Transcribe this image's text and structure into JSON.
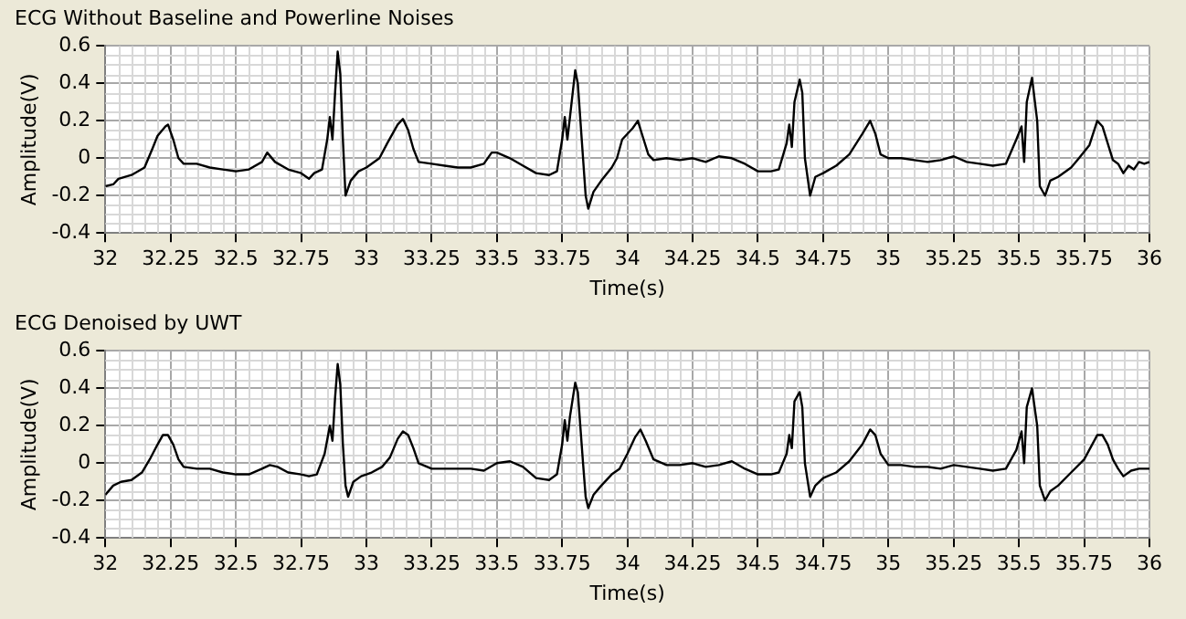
{
  "chart_data": [
    {
      "type": "line",
      "title": "ECG Without Baseline and Powerline Noises",
      "xlabel": "Time(s)",
      "ylabel": "Amplitude(V)",
      "xlim": [
        32,
        36
      ],
      "xticks": [
        32,
        32.25,
        32.5,
        32.75,
        33,
        33.25,
        33.5,
        33.75,
        34,
        34.25,
        34.5,
        34.75,
        35,
        35.25,
        35.5,
        35.75,
        36
      ],
      "ylim": [
        -0.4,
        0.6
      ],
      "yticks": [
        -0.4,
        -0.2,
        0,
        0.2,
        0.4,
        0.6
      ],
      "grid": true,
      "legend": false,
      "marker": "none",
      "line_style": "solid",
      "series": [
        {
          "color": "#000000",
          "x": [
            32,
            32.03,
            32.05,
            32.1,
            32.15,
            32.18,
            32.2,
            32.23,
            32.24,
            32.26,
            32.28,
            32.3,
            32.35,
            32.4,
            32.45,
            32.5,
            32.55,
            32.6,
            32.62,
            32.65,
            32.7,
            32.75,
            32.78,
            32.8,
            32.83,
            32.85,
            32.86,
            32.87,
            32.88,
            32.89,
            32.9,
            32.91,
            32.92,
            32.94,
            32.97,
            33,
            33.05,
            33.08,
            33.12,
            33.14,
            33.16,
            33.18,
            33.2,
            33.25,
            33.3,
            33.35,
            33.4,
            33.45,
            33.48,
            33.5,
            33.55,
            33.6,
            33.65,
            33.7,
            33.73,
            33.75,
            33.76,
            33.77,
            33.78,
            33.8,
            33.81,
            33.83,
            33.84,
            33.85,
            33.87,
            33.9,
            33.94,
            33.96,
            33.98,
            34.02,
            34.04,
            34.06,
            34.08,
            34.1,
            34.15,
            34.2,
            34.25,
            34.3,
            34.35,
            34.4,
            34.45,
            34.5,
            34.55,
            34.58,
            34.61,
            34.62,
            34.63,
            34.64,
            34.66,
            34.67,
            34.68,
            34.7,
            34.72,
            34.75,
            34.8,
            34.85,
            34.9,
            34.93,
            34.95,
            34.97,
            35,
            35.05,
            35.1,
            35.15,
            35.2,
            35.25,
            35.3,
            35.35,
            35.4,
            35.45,
            35.49,
            35.51,
            35.52,
            35.53,
            35.55,
            35.57,
            35.58,
            35.6,
            35.62,
            35.65,
            35.7,
            35.73,
            35.77,
            35.8,
            35.82,
            35.84,
            35.86,
            35.88,
            35.9,
            35.92,
            35.94,
            35.96,
            35.98,
            36
          ],
          "values": [
            -0.15,
            -0.14,
            -0.11,
            -0.09,
            -0.05,
            0.05,
            0.12,
            0.17,
            0.18,
            0.1,
            0,
            -0.03,
            -0.03,
            -0.05,
            -0.06,
            -0.07,
            -0.06,
            -0.02,
            0.03,
            -0.02,
            -0.06,
            -0.08,
            -0.11,
            -0.08,
            -0.06,
            0.1,
            0.22,
            0.1,
            0.35,
            0.57,
            0.45,
            0.1,
            -0.2,
            -0.12,
            -0.07,
            -0.05,
            0,
            0.08,
            0.18,
            0.21,
            0.15,
            0.05,
            -0.02,
            -0.03,
            -0.04,
            -0.05,
            -0.05,
            -0.03,
            0.03,
            0.03,
            0,
            -0.04,
            -0.08,
            -0.09,
            -0.07,
            0.1,
            0.22,
            0.1,
            0.22,
            0.47,
            0.4,
            0,
            -0.2,
            -0.27,
            -0.18,
            -0.12,
            -0.05,
            0,
            0.1,
            0.16,
            0.2,
            0.11,
            0.02,
            -0.01,
            0,
            -0.01,
            0,
            -0.02,
            0.01,
            0,
            -0.03,
            -0.07,
            -0.07,
            -0.06,
            0.08,
            0.18,
            0.06,
            0.3,
            0.42,
            0.35,
            0,
            -0.2,
            -0.1,
            -0.08,
            -0.04,
            0.02,
            0.13,
            0.2,
            0.13,
            0.02,
            0,
            0,
            -0.01,
            -0.02,
            -0.01,
            0.01,
            -0.02,
            -0.03,
            -0.04,
            -0.03,
            0.1,
            0.17,
            -0.02,
            0.3,
            0.43,
            0.2,
            -0.15,
            -0.2,
            -0.12,
            -0.1,
            -0.05,
            0,
            0.07,
            0.2,
            0.17,
            0.08,
            -0.01,
            -0.03,
            -0.08,
            -0.04,
            -0.06,
            -0.02,
            -0.03,
            -0.02
          ]
        }
      ]
    },
    {
      "type": "line",
      "title": "ECG Denoised by UWT",
      "xlabel": "Time(s)",
      "ylabel": "Amplitude(V)",
      "xlim": [
        32,
        36
      ],
      "xticks": [
        32,
        32.25,
        32.5,
        32.75,
        33,
        33.25,
        33.5,
        33.75,
        34,
        34.25,
        34.5,
        34.75,
        35,
        35.25,
        35.5,
        35.75,
        36
      ],
      "ylim": [
        -0.4,
        0.6
      ],
      "yticks": [
        -0.4,
        -0.2,
        0,
        0.2,
        0.4,
        0.6
      ],
      "grid": true,
      "legend": false,
      "marker": "none",
      "line_style": "solid",
      "series": [
        {
          "color": "#000000",
          "x": [
            32,
            32.03,
            32.06,
            32.1,
            32.14,
            32.17,
            32.2,
            32.22,
            32.24,
            32.26,
            32.28,
            32.3,
            32.35,
            32.4,
            32.45,
            32.5,
            32.55,
            32.6,
            32.63,
            32.66,
            32.7,
            32.75,
            32.78,
            32.81,
            32.84,
            32.86,
            32.87,
            32.88,
            32.89,
            32.9,
            32.91,
            32.92,
            32.93,
            32.95,
            32.98,
            33.02,
            33.06,
            33.09,
            33.12,
            33.14,
            33.16,
            33.18,
            33.2,
            33.25,
            33.3,
            33.35,
            33.4,
            33.45,
            33.5,
            33.55,
            33.6,
            33.65,
            33.7,
            33.73,
            33.75,
            33.76,
            33.77,
            33.78,
            33.8,
            33.81,
            33.83,
            33.84,
            33.85,
            33.87,
            33.9,
            33.94,
            33.97,
            34,
            34.03,
            34.05,
            34.07,
            34.1,
            34.15,
            34.2,
            34.25,
            34.3,
            34.35,
            34.4,
            34.45,
            34.5,
            34.55,
            34.58,
            34.61,
            34.62,
            34.63,
            34.64,
            34.66,
            34.67,
            34.68,
            34.7,
            34.72,
            34.75,
            34.8,
            34.85,
            34.9,
            34.93,
            34.95,
            34.97,
            35,
            35.05,
            35.1,
            35.15,
            35.2,
            35.25,
            35.3,
            35.35,
            35.4,
            35.45,
            35.49,
            35.51,
            35.52,
            35.53,
            35.55,
            35.57,
            35.58,
            35.6,
            35.62,
            35.65,
            35.7,
            35.75,
            35.8,
            35.82,
            35.84,
            35.86,
            35.88,
            35.9,
            35.93,
            35.96,
            36
          ],
          "values": [
            -0.17,
            -0.12,
            -0.1,
            -0.09,
            -0.05,
            0.02,
            0.1,
            0.15,
            0.15,
            0.1,
            0.02,
            -0.02,
            -0.03,
            -0.03,
            -0.05,
            -0.06,
            -0.06,
            -0.03,
            -0.01,
            -0.02,
            -0.05,
            -0.06,
            -0.07,
            -0.06,
            0.05,
            0.2,
            0.12,
            0.35,
            0.53,
            0.42,
            0.1,
            -0.12,
            -0.18,
            -0.1,
            -0.07,
            -0.05,
            -0.02,
            0.03,
            0.13,
            0.17,
            0.15,
            0.08,
            0,
            -0.03,
            -0.03,
            -0.03,
            -0.03,
            -0.04,
            0,
            0.01,
            -0.02,
            -0.08,
            -0.09,
            -0.06,
            0.1,
            0.23,
            0.12,
            0.25,
            0.43,
            0.38,
            0,
            -0.18,
            -0.24,
            -0.17,
            -0.12,
            -0.06,
            -0.03,
            0.05,
            0.14,
            0.18,
            0.12,
            0.02,
            -0.01,
            -0.01,
            0,
            -0.02,
            -0.01,
            0.01,
            -0.03,
            -0.06,
            -0.06,
            -0.05,
            0.05,
            0.15,
            0.08,
            0.33,
            0.38,
            0.3,
            0,
            -0.18,
            -0.12,
            -0.08,
            -0.05,
            0.01,
            0.1,
            0.18,
            0.15,
            0.05,
            -0.01,
            -0.01,
            -0.02,
            -0.02,
            -0.03,
            -0.01,
            -0.02,
            -0.03,
            -0.04,
            -0.03,
            0.07,
            0.17,
            0,
            0.3,
            0.4,
            0.2,
            -0.12,
            -0.2,
            -0.15,
            -0.12,
            -0.05,
            0.02,
            0.15,
            0.15,
            0.1,
            0.02,
            -0.03,
            -0.07,
            -0.04,
            -0.03,
            -0.03
          ]
        }
      ]
    }
  ]
}
